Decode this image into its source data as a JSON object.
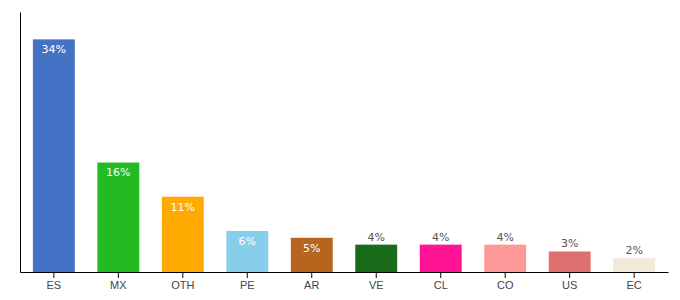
{
  "chart_data": {
    "type": "bar",
    "categories": [
      "ES",
      "MX",
      "OTH",
      "PE",
      "AR",
      "VE",
      "CL",
      "CO",
      "US",
      "EC"
    ],
    "values": [
      34,
      16,
      11,
      6,
      5,
      4,
      4,
      4,
      3,
      2
    ],
    "value_labels": [
      "34%",
      "16%",
      "11%",
      "6%",
      "5%",
      "4%",
      "4%",
      "4%",
      "3%",
      "2%"
    ],
    "colors": [
      "#4472c4",
      "#22bb22",
      "#ffaa00",
      "#87ceeb",
      "#b5651d",
      "#1a6b1a",
      "#ff1493",
      "#ff9999",
      "#e07070",
      "#f0ead6"
    ],
    "ylim": [
      0,
      38
    ],
    "grid": false,
    "data_labels": true,
    "tick_labels": "x"
  }
}
